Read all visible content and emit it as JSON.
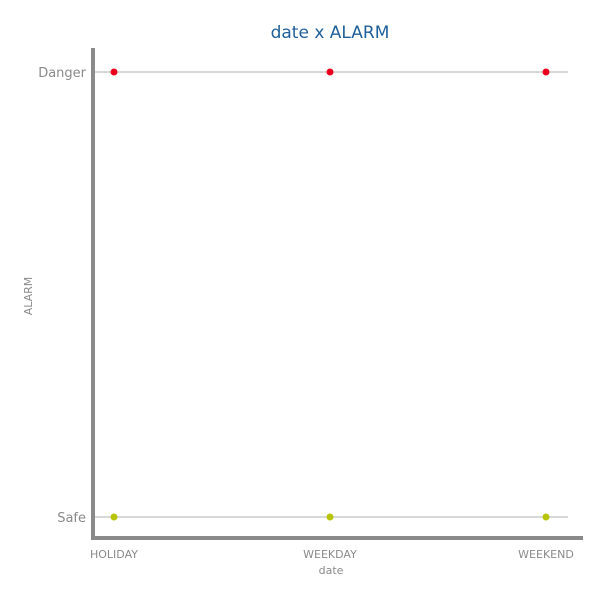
{
  "chart_data": {
    "type": "scatter",
    "title": "date x ALARM",
    "xlabel": "date",
    "ylabel": "ALARM",
    "x_categories": [
      "HOLIDAY",
      "WEEKDAY",
      "WEEKEND"
    ],
    "y_categories": [
      "Safe",
      "Danger"
    ],
    "grid": "horizontal",
    "points": [
      {
        "x": "HOLIDAY",
        "y": "Danger",
        "color": "#e8001c"
      },
      {
        "x": "WEEKDAY",
        "y": "Danger",
        "color": "#e8001c"
      },
      {
        "x": "WEEKEND",
        "y": "Danger",
        "color": "#e8001c"
      },
      {
        "x": "HOLIDAY",
        "y": "Safe",
        "color": "#b8c400"
      },
      {
        "x": "WEEKDAY",
        "y": "Safe",
        "color": "#b8c400"
      },
      {
        "x": "WEEKEND",
        "y": "Safe",
        "color": "#b8c400"
      }
    ],
    "colors": {
      "title": "#1f5f9a",
      "axis": "#8a8a8a",
      "grid": "#cccccc",
      "danger": "#e8001c",
      "safe": "#b8c400"
    }
  }
}
